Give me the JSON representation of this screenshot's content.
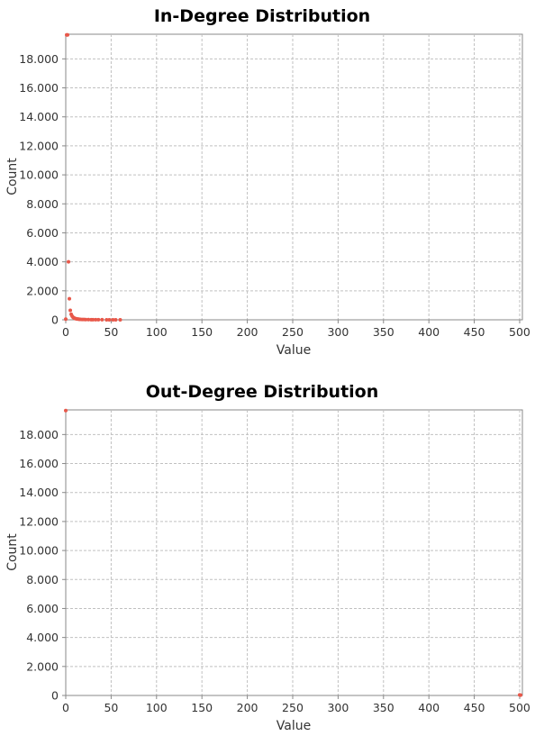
{
  "chart_data": [
    {
      "type": "scatter",
      "title": "In-Degree Distribution",
      "xlabel": "Value",
      "ylabel": "Count",
      "xlim": [
        0,
        503
      ],
      "ylim": [
        0,
        19700
      ],
      "xticks": [
        "0",
        "50",
        "100",
        "150",
        "200",
        "250",
        "300",
        "350",
        "400",
        "450",
        "500"
      ],
      "yticks": [
        "0",
        "2.000",
        "4.000",
        "6.000",
        "8.000",
        "10.000",
        "12.000",
        "14.000",
        "16.000",
        "18.000"
      ],
      "grid": true,
      "series": [
        {
          "color": "#e8584a",
          "points": [
            [
              0,
              50
            ],
            [
              1,
              19650
            ],
            [
              2,
              19650
            ],
            [
              3,
              4000
            ],
            [
              4,
              1450
            ],
            [
              5,
              650
            ],
            [
              6,
              380
            ],
            [
              7,
              260
            ],
            [
              8,
              180
            ],
            [
              9,
              130
            ],
            [
              10,
              100
            ],
            [
              11,
              80
            ],
            [
              12,
              65
            ],
            [
              13,
              55
            ],
            [
              14,
              45
            ],
            [
              15,
              38
            ],
            [
              16,
              32
            ],
            [
              18,
              25
            ],
            [
              20,
              20
            ],
            [
              22,
              16
            ],
            [
              25,
              12
            ],
            [
              28,
              9
            ],
            [
              30,
              8
            ],
            [
              33,
              6
            ],
            [
              36,
              5
            ],
            [
              40,
              4
            ],
            [
              45,
              3
            ],
            [
              48,
              2
            ],
            [
              52,
              2
            ],
            [
              55,
              1
            ],
            [
              60,
              1
            ]
          ]
        }
      ]
    },
    {
      "type": "scatter",
      "title": "Out-Degree Distribution",
      "xlabel": "Value",
      "ylabel": "Count",
      "xlim": [
        0,
        503
      ],
      "ylim": [
        0,
        19700
      ],
      "xticks": [
        "0",
        "50",
        "100",
        "150",
        "200",
        "250",
        "300",
        "350",
        "400",
        "450",
        "500"
      ],
      "yticks": [
        "0",
        "2.000",
        "4.000",
        "6.000",
        "8.000",
        "10.000",
        "12.000",
        "14.000",
        "16.000",
        "18.000"
      ],
      "grid": true,
      "series": [
        {
          "color": "#e8584a",
          "points": [
            [
              0,
              19650
            ],
            [
              500,
              40
            ],
            [
              501,
              20
            ]
          ]
        }
      ]
    }
  ]
}
